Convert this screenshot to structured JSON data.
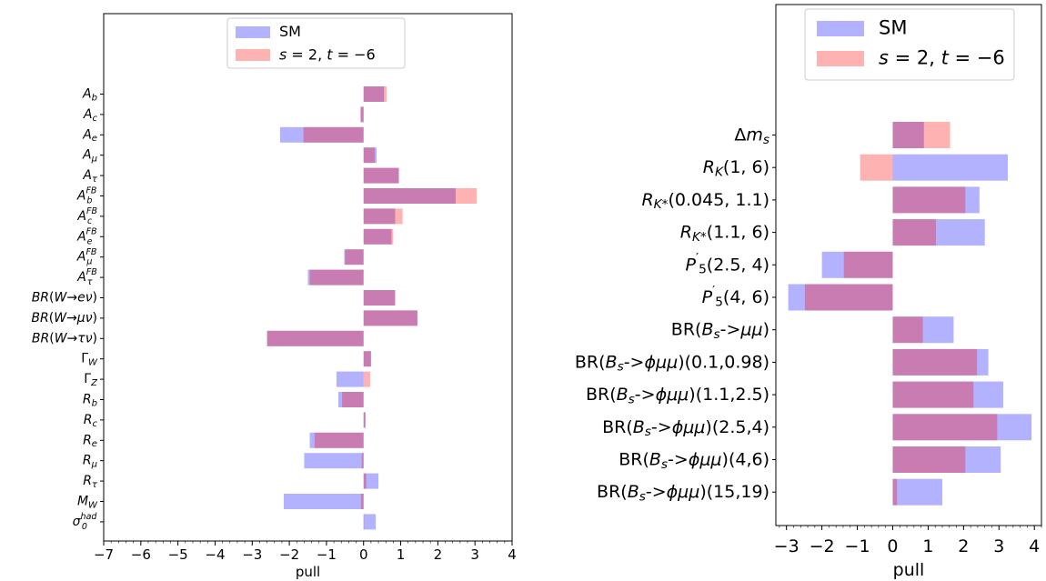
{
  "chart_data": [
    {
      "type": "bar",
      "orientation": "horizontal",
      "xlabel": "pull",
      "xlim": [
        -7,
        4
      ],
      "xticks": [
        "−7",
        "−6",
        "−5",
        "−4",
        "−3",
        "−2",
        "−1",
        "0",
        "1",
        "2",
        "3",
        "4"
      ],
      "legend": {
        "position": "top-center",
        "entries": [
          {
            "label_text": "SM",
            "color": "#0000ff",
            "opacity": 0.3
          },
          {
            "label_parts": [
              {
                "t": "s",
                "style": "i"
              },
              {
                "t": " = 2, ",
                "style": "n"
              },
              {
                "t": "t",
                "style": "i"
              },
              {
                "t": " = −6",
                "style": "n"
              }
            ],
            "color": "#ff0000",
            "opacity": 0.3
          }
        ]
      },
      "series": [
        {
          "name": "SM",
          "color": "#0000ff",
          "opacity": 0.3,
          "values": [
            0.55,
            -0.08,
            -2.25,
            0.35,
            0.95,
            2.48,
            0.85,
            0.75,
            -0.52,
            -1.5,
            0.85,
            1.45,
            -2.6,
            0.2,
            -0.73,
            -0.68,
            0.05,
            -1.45,
            -1.6,
            0.4,
            -2.15,
            0.33
          ]
        },
        {
          "name": "s = 2, t = −6",
          "color": "#ff0000",
          "opacity": 0.3,
          "values": [
            0.62,
            -0.08,
            -1.62,
            0.3,
            0.95,
            3.05,
            1.05,
            0.8,
            -0.5,
            -1.45,
            0.85,
            1.45,
            -2.6,
            0.2,
            0.18,
            -0.58,
            0.05,
            -1.32,
            -0.05,
            0.07,
            -0.07,
            0.0
          ]
        }
      ],
      "categories": [
        {
          "base": "A",
          "sub": "b"
        },
        {
          "base": "A",
          "sub": "c"
        },
        {
          "base": "A",
          "sub": "e"
        },
        {
          "base": "A",
          "sub": "μ"
        },
        {
          "base": "A",
          "sub": "τ"
        },
        {
          "base": "A",
          "sub": "b",
          "sup": "FB"
        },
        {
          "base": "A",
          "sub": "c",
          "sup": "FB"
        },
        {
          "base": "A",
          "sub": "e",
          "sup": "FB"
        },
        {
          "base": "A",
          "sub": "μ",
          "sup": "FB"
        },
        {
          "base": "A",
          "sub": "τ",
          "sup": "FB"
        },
        {
          "parts": [
            {
              "t": "BR",
              "style": "i"
            },
            {
              "t": "(",
              "style": "n"
            },
            {
              "t": "W",
              "style": "i"
            },
            {
              "t": "→",
              "style": "n"
            },
            {
              "t": "eν",
              "style": "i"
            },
            {
              "t": ")",
              "style": "n"
            }
          ]
        },
        {
          "parts": [
            {
              "t": "BR",
              "style": "i"
            },
            {
              "t": "(",
              "style": "n"
            },
            {
              "t": "W",
              "style": "i"
            },
            {
              "t": "→",
              "style": "n"
            },
            {
              "t": "μν",
              "style": "i"
            },
            {
              "t": ")",
              "style": "n"
            }
          ]
        },
        {
          "parts": [
            {
              "t": "BR",
              "style": "i"
            },
            {
              "t": "(",
              "style": "n"
            },
            {
              "t": "W",
              "style": "i"
            },
            {
              "t": "→",
              "style": "n"
            },
            {
              "t": "τν",
              "style": "i"
            },
            {
              "t": ")",
              "style": "n"
            }
          ]
        },
        {
          "base": "Γ",
          "sub": "W",
          "upright_base": true
        },
        {
          "base": "Γ",
          "sub": "Z",
          "upright_base": true
        },
        {
          "base": "R",
          "sub": "b"
        },
        {
          "base": "R",
          "sub": "c"
        },
        {
          "base": "R",
          "sub": "e"
        },
        {
          "base": "R",
          "sub": "μ"
        },
        {
          "base": "R",
          "sub": "τ"
        },
        {
          "base": "M",
          "sub": "W"
        },
        {
          "base": "σ",
          "sub": "0",
          "sup": "had"
        }
      ]
    },
    {
      "type": "bar",
      "orientation": "horizontal",
      "xlabel": "pull",
      "xlim": [
        -3.3,
        4.2
      ],
      "xticks": [
        "−3",
        "−2",
        "−1",
        "0",
        "1",
        "2",
        "3",
        "4"
      ],
      "legend": {
        "position": "top-center",
        "entries": [
          {
            "label_text": "SM",
            "color": "#0000ff",
            "opacity": 0.3
          },
          {
            "label_parts": [
              {
                "t": "s",
                "style": "i"
              },
              {
                "t": " = 2, ",
                "style": "n"
              },
              {
                "t": "t",
                "style": "i"
              },
              {
                "t": " = −6",
                "style": "n"
              }
            ],
            "color": "#ff0000",
            "opacity": 0.3
          }
        ]
      },
      "series": [
        {
          "name": "SM",
          "color": "#0000ff",
          "opacity": 0.3,
          "values": [
            0.88,
            3.25,
            2.45,
            2.6,
            -2.0,
            -2.95,
            1.72,
            2.7,
            3.12,
            3.92,
            3.05,
            1.4
          ]
        },
        {
          "name": "s = 2, t = −6",
          "color": "#ff0000",
          "opacity": 0.3,
          "values": [
            1.62,
            -0.92,
            2.05,
            1.22,
            -1.38,
            -2.48,
            0.85,
            2.38,
            2.28,
            2.95,
            2.05,
            0.12
          ]
        }
      ],
      "categories": [
        {
          "parts": [
            {
              "t": "Δ",
              "style": "n"
            },
            {
              "t": "m",
              "style": "i"
            },
            {
              "t": "s",
              "style": "isub"
            }
          ]
        },
        {
          "parts": [
            {
              "t": "R",
              "style": "i"
            },
            {
              "t": "K",
              "style": "isub"
            },
            {
              "t": "(1, 6)",
              "style": "n"
            }
          ]
        },
        {
          "parts": [
            {
              "t": "R",
              "style": "i"
            },
            {
              "t": "K*",
              "style": "isub"
            },
            {
              "t": "(0.045, 1.1)",
              "style": "n"
            }
          ]
        },
        {
          "parts": [
            {
              "t": "R",
              "style": "i"
            },
            {
              "t": "K*",
              "style": "isub"
            },
            {
              "t": "(1.1, 6)",
              "style": "n"
            }
          ]
        },
        {
          "parts": [
            {
              "t": "P",
              "style": "i"
            },
            {
              "t": "′",
              "style": "sup"
            },
            {
              "t": "5",
              "style": "subn"
            },
            {
              "t": "(2.5, 4)",
              "style": "n"
            }
          ]
        },
        {
          "parts": [
            {
              "t": "P",
              "style": "i"
            },
            {
              "t": "′",
              "style": "sup"
            },
            {
              "t": "5",
              "style": "subn"
            },
            {
              "t": "(4, 6)",
              "style": "n"
            }
          ]
        },
        {
          "parts": [
            {
              "t": "BR(",
              "style": "n"
            },
            {
              "t": "B",
              "style": "i"
            },
            {
              "t": "s",
              "style": "isub"
            },
            {
              "t": "->",
              "style": "n"
            },
            {
              "t": "μμ",
              "style": "i"
            },
            {
              "t": ")",
              "style": "n"
            }
          ]
        },
        {
          "parts": [
            {
              "t": "BR(",
              "style": "n"
            },
            {
              "t": "B",
              "style": "i"
            },
            {
              "t": "s",
              "style": "isub"
            },
            {
              "t": "->",
              "style": "n"
            },
            {
              "t": "ϕμμ",
              "style": "i"
            },
            {
              "t": ")(0.1,0.98)",
              "style": "n"
            }
          ]
        },
        {
          "parts": [
            {
              "t": "BR(",
              "style": "n"
            },
            {
              "t": "B",
              "style": "i"
            },
            {
              "t": "s",
              "style": "isub"
            },
            {
              "t": "->",
              "style": "n"
            },
            {
              "t": "ϕμμ",
              "style": "i"
            },
            {
              "t": ")(1.1,2.5)",
              "style": "n"
            }
          ]
        },
        {
          "parts": [
            {
              "t": "BR(",
              "style": "n"
            },
            {
              "t": "B",
              "style": "i"
            },
            {
              "t": "s",
              "style": "isub"
            },
            {
              "t": "->",
              "style": "n"
            },
            {
              "t": "ϕμμ",
              "style": "i"
            },
            {
              "t": ")(2.5,4)",
              "style": "n"
            }
          ]
        },
        {
          "parts": [
            {
              "t": "BR(",
              "style": "n"
            },
            {
              "t": "B",
              "style": "i"
            },
            {
              "t": "s",
              "style": "isub"
            },
            {
              "t": "->",
              "style": "n"
            },
            {
              "t": "ϕμμ",
              "style": "i"
            },
            {
              "t": ")(4,6)",
              "style": "n"
            }
          ]
        },
        {
          "parts": [
            {
              "t": "BR(",
              "style": "n"
            },
            {
              "t": "B",
              "style": "i"
            },
            {
              "t": "s",
              "style": "isub"
            },
            {
              "t": "->",
              "style": "n"
            },
            {
              "t": "ϕμμ",
              "style": "i"
            },
            {
              "t": ")(15,19)",
              "style": "n"
            }
          ]
        }
      ]
    }
  ]
}
